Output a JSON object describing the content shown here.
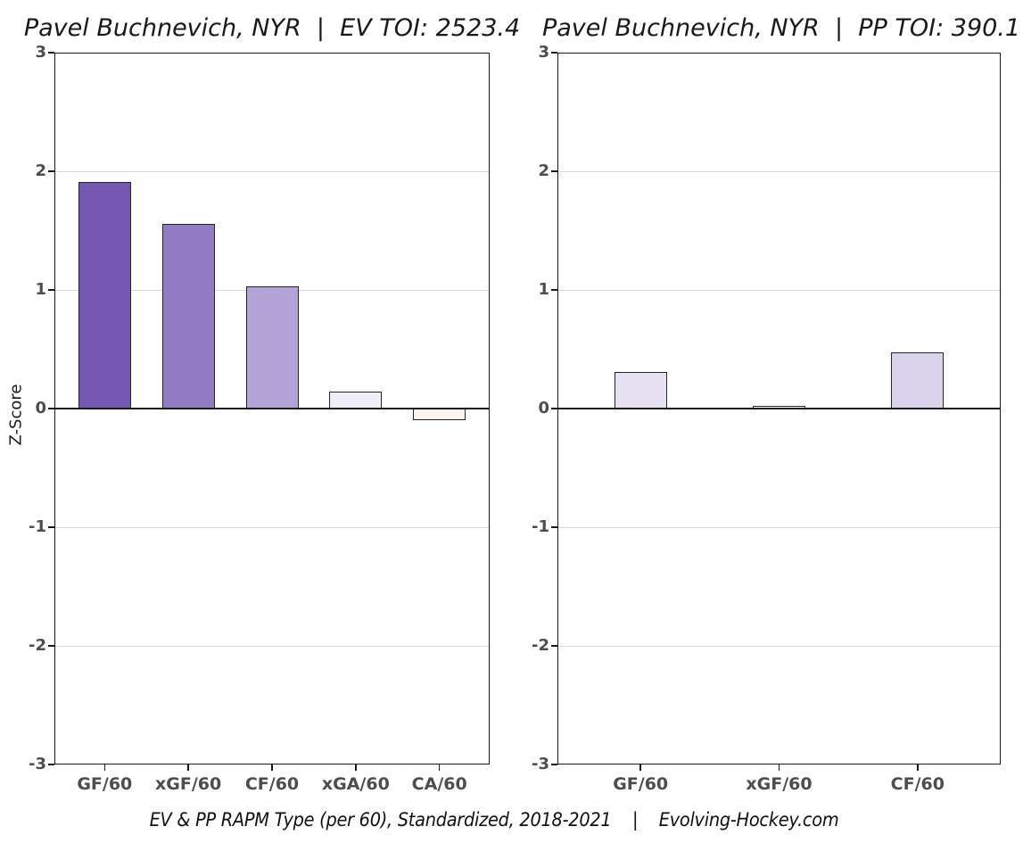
{
  "figure": {
    "caption": "EV & PP RAPM Type (per 60), Standardized, 2018-2021    |    Evolving-Hockey.com",
    "y_axis_title": "Z-Score"
  },
  "colors": {
    "axis_line": "#1a1a1a",
    "grid_line": "#d9d9d9",
    "tick_label": "#4d4d4d",
    "bar_border": "#262626",
    "background": "#ffffff"
  },
  "chart_data": [
    {
      "type": "bar",
      "title": "Pavel Buchnevich, NYR  |  EV TOI: 2523.4",
      "ylabel": "Z-Score",
      "xlabel": "",
      "categories": [
        "GF/60",
        "xGF/60",
        "CF/60",
        "xGA/60",
        "CA/60"
      ],
      "values": [
        1.91,
        1.56,
        1.03,
        0.14,
        -0.1
      ],
      "bar_colors": [
        "#7458b4",
        "#917bc2",
        "#b4a3d6",
        "#f0edf8",
        "#fdf4f2"
      ],
      "ylim": [
        -3,
        3
      ],
      "yticks": [
        3,
        2,
        1,
        0,
        -1,
        -2,
        -3
      ],
      "grid": "horizontal-major",
      "legend": "none"
    },
    {
      "type": "bar",
      "title": "Pavel Buchnevich, NYR  |  PP TOI: 390.1",
      "ylabel": "",
      "xlabel": "",
      "categories": [
        "GF/60",
        "xGF/60",
        "CF/60"
      ],
      "values": [
        0.31,
        0.02,
        0.47
      ],
      "bar_colors": [
        "#e7e0f1",
        "#fdfcfe",
        "#dbd3eb"
      ],
      "ylim": [
        -3,
        3
      ],
      "yticks": [
        3,
        2,
        1,
        0,
        -1,
        -2,
        -3
      ],
      "grid": "horizontal-major",
      "legend": "none"
    }
  ]
}
